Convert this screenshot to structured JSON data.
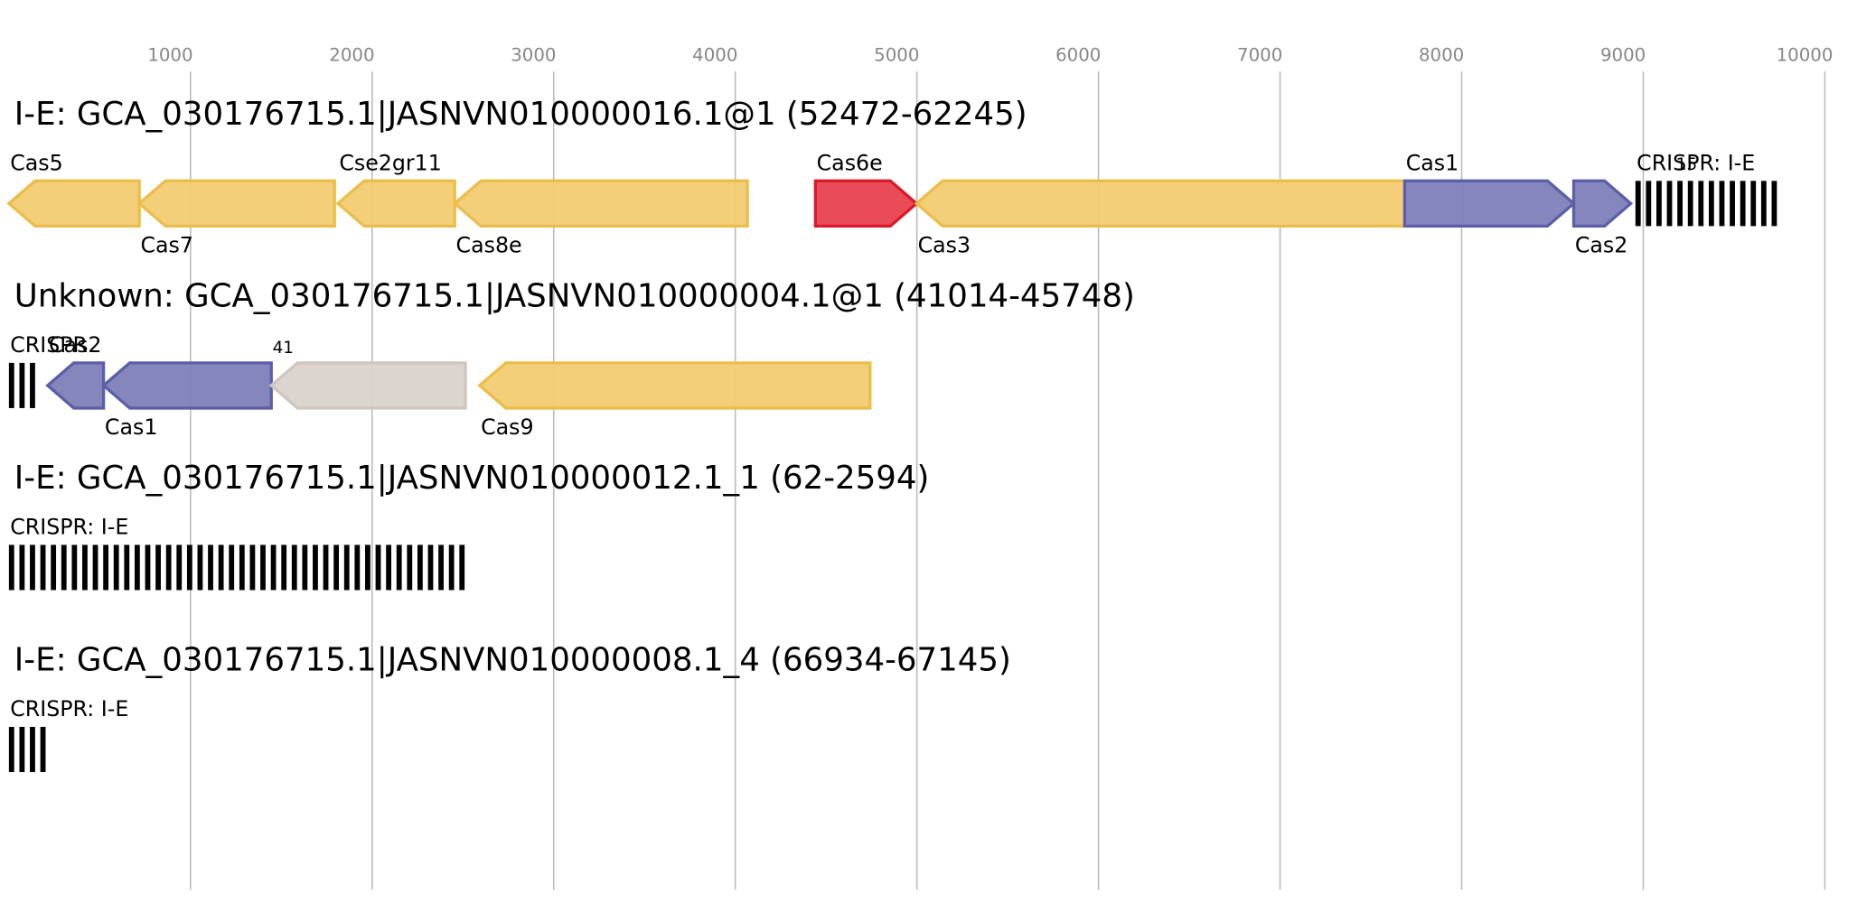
{
  "axis": {
    "xlim": [
      0,
      10000
    ],
    "xticks": [
      1000,
      2000,
      3000,
      4000,
      5000,
      6000,
      7000,
      8000,
      9000,
      10000
    ]
  },
  "tracks": [
    {
      "title": "I-E: GCA_030176715.1|JASNVN010000016.1@1 (52472-62245)",
      "features": [
        {
          "label": "Cas5",
          "kind": "gene",
          "start": 0,
          "end": 718,
          "strand": "-",
          "color": "#f2cc73",
          "label_side": "above"
        },
        {
          "label": "Cas7",
          "kind": "gene",
          "start": 718,
          "end": 1793,
          "strand": "-",
          "color": "#f2cc73",
          "label_side": "below"
        },
        {
          "label": "Cse2gr11",
          "kind": "gene",
          "start": 1812,
          "end": 2455,
          "strand": "-",
          "color": "#f2cc73",
          "label_side": "above"
        },
        {
          "label": "Cas8e",
          "kind": "gene",
          "start": 2455,
          "end": 4067,
          "strand": "-",
          "color": "#f2cc73",
          "label_side": "below"
        },
        {
          "label": "Cas6e",
          "kind": "gene",
          "start": 4441,
          "end": 4998,
          "strand": "+",
          "color": "#e8414f",
          "label_side": "above"
        },
        {
          "label": "Cas3",
          "kind": "gene",
          "start": 4998,
          "end": 7686,
          "strand": "-",
          "color": "#f2cc73",
          "label_side": "below"
        },
        {
          "label": "Cas1",
          "kind": "gene",
          "start": 7686,
          "end": 8617,
          "strand": "+",
          "color": "#7e7fb8",
          "label_side": "above"
        },
        {
          "label": "Cas2",
          "kind": "gene",
          "start": 8617,
          "end": 8931,
          "strand": "+",
          "color": "#7e7fb8",
          "label_side": "below"
        },
        {
          "label": "CRISPR: I-E",
          "kind": "crispr",
          "start": 8957,
          "end": 9783,
          "repeat_label": "15",
          "label_side": "above"
        }
      ]
    },
    {
      "title": "Unknown: GCA_030176715.1|JASNVN010000004.1@1 (41014-45748)",
      "features": [
        {
          "label": "CRISPR",
          "kind": "crispr",
          "start": 0,
          "end": 160,
          "label_side": "above"
        },
        {
          "label": "Cas2",
          "kind": "gene",
          "start": 213,
          "end": 521,
          "strand": "-",
          "color": "#7e7fb8",
          "label_side": "above"
        },
        {
          "label": "Cas1",
          "kind": "gene",
          "start": 521,
          "end": 1445,
          "strand": "-",
          "color": "#7e7fb8",
          "label_side": "below"
        },
        {
          "label": "41",
          "kind": "gene",
          "start": 1445,
          "end": 2514,
          "strand": "-",
          "color": "#dad2cc",
          "label_side": "above"
        },
        {
          "label": "Cas9",
          "kind": "gene",
          "start": 2592,
          "end": 4742,
          "strand": "-",
          "color": "#f2cc73",
          "label_side": "below"
        }
      ]
    },
    {
      "title": "I-E: GCA_030176715.1|JASNVN010000012.1_1 (62-2594)",
      "features": [
        {
          "label": "CRISPR: I-E",
          "kind": "crispr",
          "start": 0,
          "end": 2533,
          "label_side": "above"
        }
      ]
    },
    {
      "title": "I-E: GCA_030176715.1|JASNVN010000008.1_4 (66934-67145)",
      "features": [
        {
          "label": "CRISPR: I-E",
          "kind": "crispr",
          "start": 0,
          "end": 213,
          "label_side": "above"
        }
      ]
    }
  ]
}
